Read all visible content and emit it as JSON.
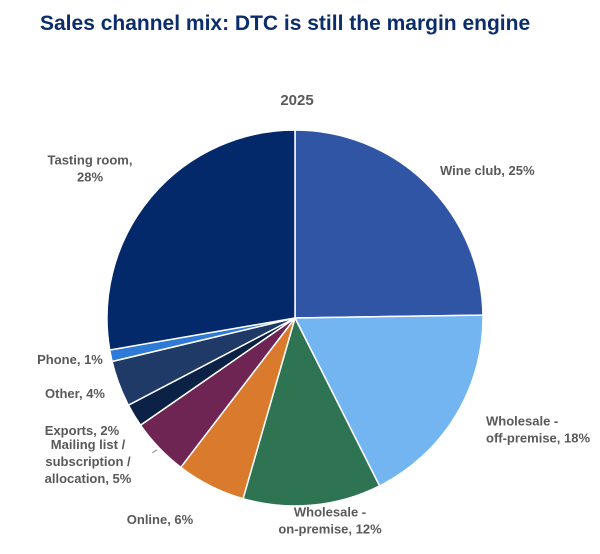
{
  "title": "Sales channel mix: DTC is still the margin engine",
  "chart_data": {
    "type": "pie",
    "subtitle": "2025",
    "unit": "%",
    "slices": [
      {
        "name": "Wine club",
        "value": 25,
        "color": "#2f55a4",
        "label_lines": [
          "Wine club, 25%"
        ]
      },
      {
        "name": "Wholesale - off-premise",
        "value": 18,
        "color": "#72b5f0",
        "label_lines": [
          "Wholesale -",
          "off-premise, 18%"
        ]
      },
      {
        "name": "Wholesale - on-premise",
        "value": 12,
        "color": "#2e7352",
        "label_lines": [
          "Wholesale -",
          "on-premise, 12%"
        ]
      },
      {
        "name": "Online",
        "value": 6,
        "color": "#d97a2d",
        "label_lines": [
          "Online, 6%"
        ]
      },
      {
        "name": "Mailing list / subscription / allocation",
        "value": 5,
        "color": "#6f2553",
        "label_lines": [
          "Mailing list /",
          "subscription /",
          "allocation, 5%"
        ]
      },
      {
        "name": "Exports",
        "value": 2,
        "color": "#0c2146",
        "label_lines": [
          "Exports, 2%"
        ]
      },
      {
        "name": "Other",
        "value": 4,
        "color": "#1f3a66",
        "label_lines": [
          "Other, 4%"
        ]
      },
      {
        "name": "Phone",
        "value": 1,
        "color": "#2f7ad6",
        "label_lines": [
          "Phone, 1%"
        ]
      },
      {
        "name": "Tasting room",
        "value": 28,
        "color": "#03296b",
        "label_lines": [
          "Tasting room,",
          "28%"
        ]
      }
    ]
  }
}
